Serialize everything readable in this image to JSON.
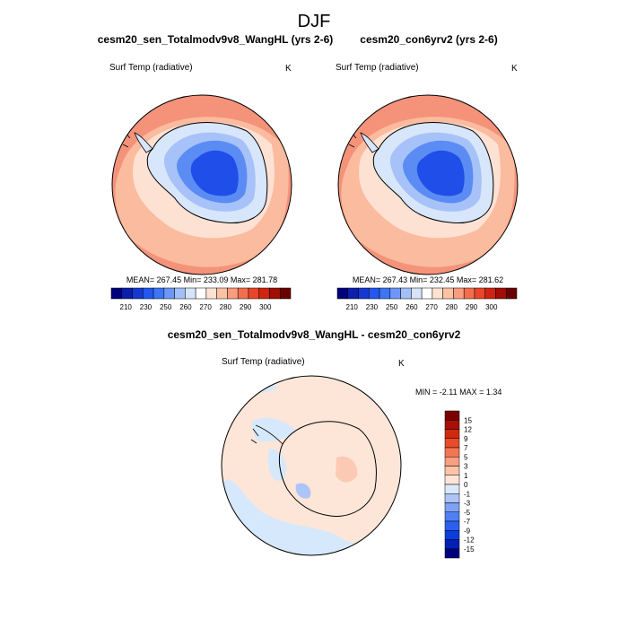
{
  "page_title": "DJF",
  "colors": {
    "land_deep": "#1f4ee8",
    "land_mid": "#5b8cf3",
    "land_light": "#a6c2f8",
    "land_pale": "#d7e6fb",
    "ocean_warm": "#f4937a",
    "ocean_mid": "#fbbb9f",
    "ocean_pale": "#fde1d3",
    "diff_ocean": "#fde6d8",
    "diff_neg": "#d6e8fb",
    "diff_pos": "#fbc9b4",
    "outline": "#000000"
  },
  "panels": [
    {
      "title": "cesm20_sen_Totalmodv9v8_WangHL (yrs 2-6)",
      "variable": "Surf Temp (radiative)",
      "units": "K",
      "stats": "MEAN= 267.45  Min= 233.09  Max= 281.78"
    },
    {
      "title": "cesm20_con6yrv2 (yrs 2-6)",
      "variable": "Surf Temp (radiative)",
      "units": "K",
      "stats": "MEAN= 267.43  Min= 232.45  Max= 281.62"
    }
  ],
  "abs_colorbar": {
    "colors": [
      "#00007f",
      "#0b1fa8",
      "#1438d2",
      "#2357ee",
      "#3d75f3",
      "#6d97f5",
      "#a3bff7",
      "#d5e4fa",
      "#ffffff",
      "#fde2d2",
      "#fcc2a6",
      "#f99d7e",
      "#f36e4f",
      "#e9452a",
      "#cf2510",
      "#a00e06",
      "#6b0000"
    ],
    "labels": [
      "210",
      "230",
      "250",
      "260",
      "270",
      "280",
      "290",
      "300"
    ]
  },
  "diff_panel": {
    "title": "cesm20_sen_Totalmodv9v8_WangHL - cesm20_con6yrv2",
    "variable": "Surf Temp (radiative)",
    "units": "K",
    "stats": "MIN =  -2.11  MAX =   1.34"
  },
  "diff_colorbar": {
    "colors": [
      "#00007f",
      "#0020b3",
      "#0a3ddd",
      "#2a5fef",
      "#4f80f3",
      "#7ea2f6",
      "#aec4f9",
      "#dbe8fb",
      "#fde4d6",
      "#fcc4a9",
      "#fa9f80",
      "#f47552",
      "#ea4b29",
      "#cf2a10",
      "#a81005",
      "#7a0000"
    ],
    "labels": [
      "15",
      "12",
      "9",
      "7",
      "5",
      "3",
      "1",
      "0",
      "-1",
      "-3",
      "-5",
      "-7",
      "-9",
      "-12",
      "-15"
    ]
  }
}
